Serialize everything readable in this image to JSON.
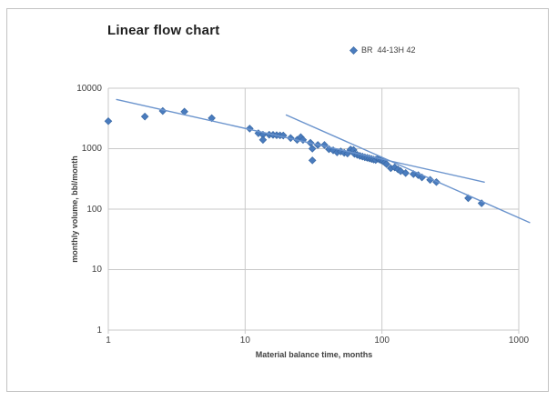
{
  "colors": {
    "marker": "#4a7cbe",
    "marker_edge": "#3a69a5",
    "trendline": "#6b94cd",
    "grid": "#c9c9c9",
    "tick_text": "#404040",
    "title_text": "#1f1f1f",
    "chart_border": "#c3c3c3",
    "background": "#ffffff"
  },
  "chart_data": {
    "type": "scatter",
    "title": "Linear flow chart",
    "xlabel": "Material balance time, months",
    "ylabel": "monthly volume, bbl/month",
    "x_scale": "log",
    "y_scale": "log",
    "xlim": [
      1,
      1000
    ],
    "ylim": [
      1,
      10000
    ],
    "x_ticks": [
      1,
      10,
      100,
      1000
    ],
    "y_ticks": [
      1,
      10,
      100,
      1000,
      10000
    ],
    "grid": true,
    "legend": {
      "position": "top-right",
      "entries": [
        {
          "label": "BR  44-13H 42",
          "marker": "diamond-marker-icon",
          "color": "#4a7cbe"
        }
      ]
    },
    "series": [
      {
        "name": "BR  44-13H 42",
        "marker": "diamond",
        "points": [
          [
            1,
            2850
          ],
          [
            1.85,
            3400
          ],
          [
            2.5,
            4200
          ],
          [
            3.6,
            4100
          ],
          [
            5.7,
            3200
          ],
          [
            10.8,
            2150
          ],
          [
            12.5,
            1800
          ],
          [
            13.5,
            1700
          ],
          [
            13.5,
            1400
          ],
          [
            15,
            1700
          ],
          [
            16,
            1690
          ],
          [
            17,
            1670
          ],
          [
            18,
            1660
          ],
          [
            19,
            1650
          ],
          [
            21.5,
            1500
          ],
          [
            24,
            1400
          ],
          [
            25.5,
            1550
          ],
          [
            26.5,
            1400
          ],
          [
            30,
            1250
          ],
          [
            31,
            1000
          ],
          [
            31,
            640
          ],
          [
            34,
            1150
          ],
          [
            38,
            1150
          ],
          [
            41,
            980
          ],
          [
            44,
            940
          ],
          [
            47,
            870
          ],
          [
            50,
            900
          ],
          [
            53,
            855
          ],
          [
            56,
            830
          ],
          [
            59,
            970
          ],
          [
            62,
            950
          ],
          [
            63,
            820
          ],
          [
            66,
            790
          ],
          [
            69,
            760
          ],
          [
            72,
            740
          ],
          [
            75,
            720
          ],
          [
            78,
            705
          ],
          [
            81,
            690
          ],
          [
            84,
            675
          ],
          [
            87,
            660
          ],
          [
            90,
            650
          ],
          [
            93,
            685
          ],
          [
            96,
            660
          ],
          [
            99,
            640
          ],
          [
            102,
            620
          ],
          [
            105,
            590
          ],
          [
            108,
            555
          ],
          [
            116,
            475
          ],
          [
            124,
            490
          ],
          [
            131,
            455
          ],
          [
            137,
            425
          ],
          [
            149,
            395
          ],
          [
            170,
            380
          ],
          [
            184,
            365
          ],
          [
            196,
            335
          ],
          [
            225,
            305
          ],
          [
            250,
            280
          ],
          [
            427,
            152
          ],
          [
            535,
            125
          ]
        ]
      }
    ],
    "trendlines": [
      {
        "id": "half-slope-trendline",
        "slope": -0.5,
        "from": [
          1.15,
          6500
        ],
        "to": [
          560,
          280
        ]
      },
      {
        "id": "unit-slope-trendline",
        "slope": -1.0,
        "from": [
          20,
          3600
        ],
        "to": [
          1200,
          60
        ]
      }
    ]
  }
}
